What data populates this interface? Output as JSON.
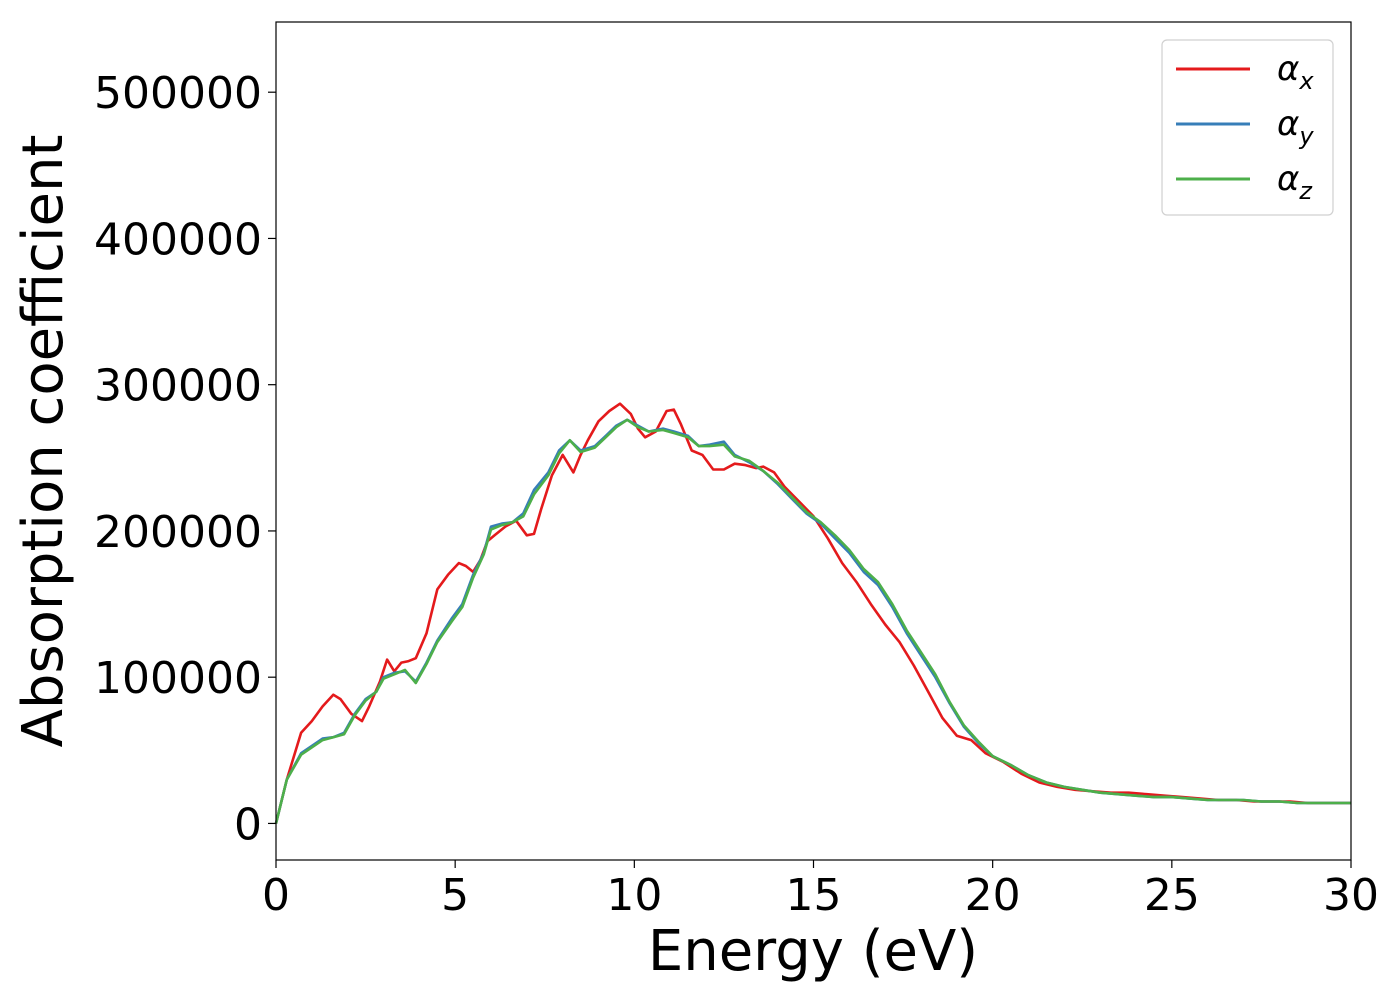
{
  "chart_data": {
    "type": "line",
    "title": "",
    "xlabel": "Energy (eV)",
    "ylabel": "Absorption coefficient",
    "xlim": [
      0,
      30
    ],
    "ylim": [
      -25000,
      548000
    ],
    "xticks": [
      0,
      5,
      10,
      15,
      20,
      25,
      30
    ],
    "xtick_labels": [
      "0",
      "5",
      "10",
      "15",
      "20",
      "25",
      "30"
    ],
    "yticks": [
      0,
      100000,
      200000,
      300000,
      400000,
      500000
    ],
    "ytick_labels": [
      "0",
      "100000",
      "200000",
      "300000",
      "400000",
      "500000"
    ],
    "grid": false,
    "legend_position": "top-right",
    "series": [
      {
        "name": "αx",
        "legend_symbol": "α",
        "legend_sub": "x",
        "color": "#e41a1c",
        "x": [
          0,
          0.3,
          0.7,
          1.0,
          1.3,
          1.6,
          1.8,
          2.1,
          2.4,
          2.6,
          2.9,
          3.1,
          3.3,
          3.5,
          3.7,
          3.9,
          4.2,
          4.5,
          4.8,
          5.1,
          5.3,
          5.5,
          5.7,
          5.9,
          6.1,
          6.4,
          6.7,
          7.0,
          7.2,
          7.4,
          7.7,
          8.0,
          8.3,
          8.5,
          8.7,
          9.0,
          9.3,
          9.6,
          9.9,
          10.1,
          10.3,
          10.6,
          10.9,
          11.1,
          11.3,
          11.6,
          11.9,
          12.2,
          12.5,
          12.8,
          13.1,
          13.4,
          13.6,
          13.9,
          14.2,
          14.6,
          15.0,
          15.4,
          15.8,
          16.2,
          16.6,
          17.0,
          17.4,
          17.8,
          18.2,
          18.6,
          19.0,
          19.4,
          19.8,
          20.3,
          20.8,
          21.3,
          21.8,
          22.3,
          22.8,
          23.3,
          23.8,
          24.3,
          24.8,
          25.3,
          25.8,
          26.3,
          26.8,
          27.3,
          27.8,
          28.3,
          28.8,
          29.3,
          30.0
        ],
        "values": [
          0,
          30000,
          62000,
          70000,
          80000,
          88000,
          85000,
          75000,
          70000,
          80000,
          97000,
          112000,
          104000,
          110000,
          111000,
          113000,
          130000,
          160000,
          170000,
          178000,
          176000,
          172000,
          180000,
          193000,
          197000,
          203000,
          207000,
          197000,
          198000,
          215000,
          238000,
          252000,
          240000,
          252000,
          262000,
          275000,
          282000,
          287000,
          280000,
          270000,
          264000,
          268000,
          282000,
          283000,
          273000,
          255000,
          252000,
          242000,
          242000,
          246000,
          245000,
          243000,
          244000,
          240000,
          230000,
          220000,
          210000,
          195000,
          178000,
          165000,
          150000,
          136000,
          124000,
          108000,
          90000,
          72000,
          60000,
          57000,
          48000,
          42000,
          34000,
          28000,
          25000,
          23000,
          22000,
          21000,
          21000,
          20000,
          19000,
          18000,
          17000,
          16000,
          16000,
          15000,
          15000,
          15000,
          14000,
          14000,
          14000
        ]
      },
      {
        "name": "αy",
        "legend_symbol": "α",
        "legend_sub": "y",
        "color": "#377eb8",
        "x": [
          0,
          0.3,
          0.7,
          1.0,
          1.3,
          1.6,
          1.9,
          2.2,
          2.5,
          2.8,
          3.0,
          3.3,
          3.6,
          3.9,
          4.2,
          4.5,
          4.9,
          5.2,
          5.5,
          5.8,
          6.0,
          6.3,
          6.6,
          6.9,
          7.2,
          7.6,
          7.9,
          8.2,
          8.5,
          8.9,
          9.2,
          9.5,
          9.8,
          10.1,
          10.4,
          10.8,
          11.1,
          11.5,
          11.8,
          12.1,
          12.5,
          12.8,
          13.2,
          13.6,
          14.0,
          14.4,
          14.8,
          15.2,
          15.6,
          16.0,
          16.4,
          16.8,
          17.2,
          17.6,
          18.0,
          18.4,
          18.8,
          19.2,
          19.6,
          20.0,
          20.5,
          21.0,
          21.5,
          22.0,
          22.5,
          23.0,
          23.5,
          24.0,
          24.5,
          25.0,
          25.5,
          26.0,
          26.5,
          27.0,
          27.5,
          28.0,
          28.5,
          29.0,
          29.5,
          30.0
        ],
        "values": [
          0,
          30000,
          48000,
          53000,
          58000,
          59000,
          62000,
          75000,
          85000,
          90000,
          100000,
          103000,
          104000,
          97000,
          110000,
          125000,
          140000,
          150000,
          170000,
          185000,
          203000,
          205000,
          206000,
          212000,
          228000,
          240000,
          255000,
          262000,
          255000,
          258000,
          265000,
          272000,
          276000,
          272000,
          268000,
          270000,
          268000,
          265000,
          258000,
          259000,
          261000,
          252000,
          247000,
          241000,
          232000,
          222000,
          212000,
          205000,
          195000,
          185000,
          172000,
          163000,
          148000,
          130000,
          115000,
          100000,
          82000,
          66000,
          55000,
          46000,
          40000,
          33000,
          28000,
          25000,
          23000,
          21000,
          20000,
          19000,
          18000,
          18000,
          17000,
          16000,
          16000,
          16000,
          15000,
          15000,
          14000,
          14000,
          14000,
          14000
        ]
      },
      {
        "name": "αz",
        "legend_symbol": "α",
        "legend_sub": "z",
        "color": "#4daf4a",
        "x": [
          0,
          0.3,
          0.7,
          1.0,
          1.3,
          1.6,
          1.9,
          2.2,
          2.5,
          2.8,
          3.0,
          3.3,
          3.6,
          3.9,
          4.2,
          4.5,
          4.9,
          5.2,
          5.5,
          5.8,
          6.0,
          6.3,
          6.6,
          6.9,
          7.2,
          7.6,
          7.9,
          8.2,
          8.5,
          8.9,
          9.2,
          9.5,
          9.8,
          10.1,
          10.4,
          10.8,
          11.1,
          11.5,
          11.8,
          12.1,
          12.5,
          12.8,
          13.2,
          13.6,
          14.0,
          14.4,
          14.8,
          15.2,
          15.6,
          16.0,
          16.4,
          16.8,
          17.2,
          17.6,
          18.0,
          18.4,
          18.8,
          19.2,
          19.6,
          20.0,
          20.5,
          21.0,
          21.5,
          22.0,
          22.5,
          23.0,
          23.5,
          24.0,
          24.5,
          25.0,
          25.5,
          26.0,
          26.5,
          27.0,
          27.5,
          28.0,
          28.5,
          29.0,
          29.5,
          30.0
        ],
        "values": [
          0,
          30000,
          47000,
          52000,
          57000,
          59000,
          61000,
          74000,
          84000,
          90000,
          99000,
          102000,
          105000,
          96000,
          109000,
          124000,
          138000,
          148000,
          168000,
          184000,
          201000,
          204000,
          206000,
          210000,
          225000,
          238000,
          253000,
          262000,
          254000,
          257000,
          264000,
          271000,
          276000,
          271000,
          268000,
          269000,
          267000,
          264000,
          258000,
          258000,
          259000,
          251000,
          248000,
          241000,
          233000,
          223000,
          213000,
          206000,
          197000,
          187000,
          174000,
          165000,
          150000,
          132000,
          117000,
          102000,
          83000,
          67000,
          56000,
          46000,
          40000,
          33000,
          28000,
          25000,
          23000,
          21000,
          20000,
          19000,
          18000,
          18000,
          17000,
          16000,
          16000,
          16000,
          15000,
          15000,
          14000,
          14000,
          14000,
          14000
        ]
      }
    ]
  }
}
